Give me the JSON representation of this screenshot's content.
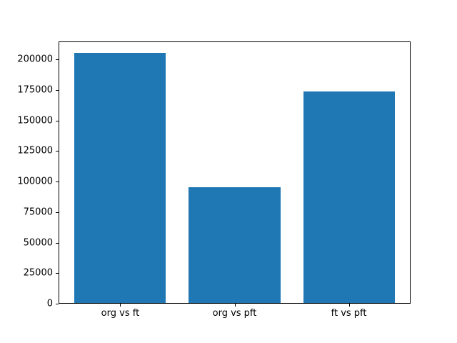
{
  "figure": {
    "background": "#ffffff",
    "bar_color": "#1f77b4",
    "spine_color": "#000000",
    "text_color": "#000000"
  },
  "chart_data": {
    "type": "bar",
    "categories": [
      "org vs ft",
      "org vs pft",
      "ft vs pft"
    ],
    "values": [
      205000,
      95000,
      173500
    ],
    "title": "",
    "xlabel": "",
    "ylabel": "",
    "ylim": [
      0,
      214800
    ],
    "yticks": [
      0,
      25000,
      50000,
      75000,
      100000,
      125000,
      150000,
      175000,
      200000
    ],
    "ytick_labels": [
      "0",
      "25000",
      "50000",
      "75000",
      "100000",
      "125000",
      "150000",
      "175000",
      "200000"
    ],
    "grid": false,
    "legend": null,
    "bar_color": "#1f77b4"
  }
}
